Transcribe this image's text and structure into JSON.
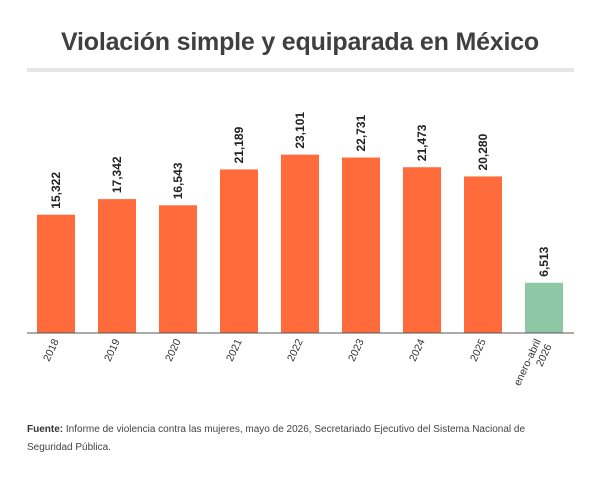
{
  "title": "Violación simple y equiparada en México",
  "source_label": "Fuente:",
  "source_text": "Informe de violencia contra las mujeres, mayo de 2026, Secretariado Ejecutivo del Sistema Nacional de Seguridad Pública.",
  "colors": {
    "primary_bar": "#ff6b3b",
    "highlight_bar": "#8dc7a6",
    "axis": "#555555",
    "text": "#333333"
  },
  "chart_data": {
    "type": "bar",
    "title": "Violación simple y equiparada en México",
    "xlabel": "",
    "ylabel": "",
    "ylim": [
      0,
      25000
    ],
    "grid": false,
    "categories": [
      "2018",
      "2019",
      "2020",
      "2021",
      "2022",
      "2023",
      "2024",
      "2025",
      "enero-abril 2026"
    ],
    "values": [
      15322,
      17342,
      16543,
      21189,
      23101,
      22731,
      21473,
      20280,
      6513
    ],
    "value_labels": [
      "15,322",
      "17,342",
      "16,543",
      "21,189",
      "23,101",
      "22,731",
      "21,473",
      "20,280",
      "6,513"
    ],
    "highlight_index": 8
  }
}
